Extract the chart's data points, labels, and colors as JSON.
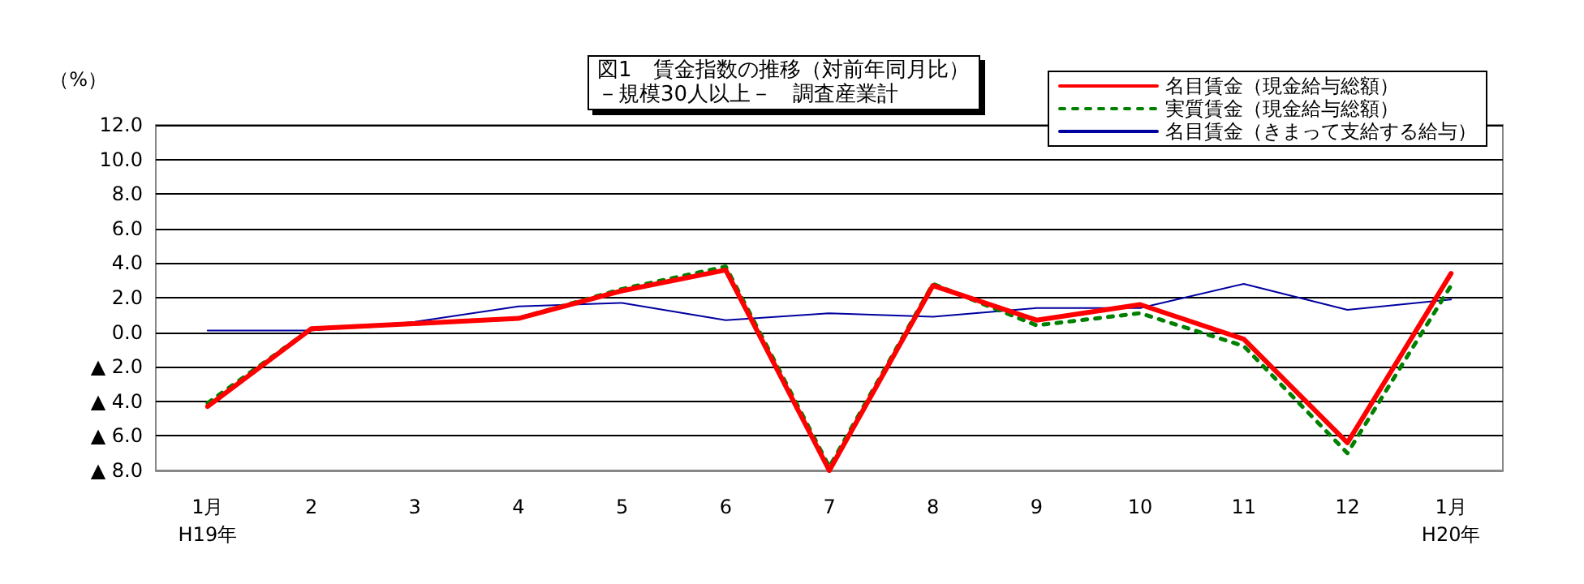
{
  "chart_data": {
    "type": "line",
    "title": "図1　賃金指数の推移（対前年同月比）",
    "subtitle": "－規模30人以上－　調査産業計",
    "ylabel": "（%）",
    "categories": [
      "1月\nH19年",
      "2",
      "3",
      "4",
      "5",
      "6",
      "7",
      "8",
      "9",
      "10",
      "11",
      "12",
      "1月\nH20年"
    ],
    "series": [
      {
        "name": "名目賃金（現金給与総額）",
        "color": "#ff0000",
        "line_style": "solid",
        "values": [
          -4.3,
          0.2,
          0.5,
          0.8,
          2.4,
          3.6,
          -8.0,
          2.7,
          0.7,
          1.6,
          -0.4,
          -6.4,
          3.4
        ]
      },
      {
        "name": "実質賃金（現金給与総額）",
        "color": "#008000",
        "line_style": "dotted",
        "values": [
          -4.1,
          0.2,
          0.5,
          0.8,
          2.5,
          3.8,
          -7.8,
          2.8,
          0.4,
          1.1,
          -0.8,
          -7.0,
          2.7
        ]
      },
      {
        "name": "名目賃金（きまって支給する給与）",
        "color": "#0000a0",
        "line_style": "solid",
        "values": [
          0.1,
          0.1,
          0.6,
          1.5,
          1.7,
          0.7,
          1.1,
          0.9,
          1.4,
          1.4,
          2.8,
          1.3,
          1.9
        ]
      }
    ],
    "ylim": [
      -8,
      12
    ],
    "yticks": [
      {
        "value": -8,
        "label": "▲ 8.0"
      },
      {
        "value": -6,
        "label": "▲ 6.0"
      },
      {
        "value": -4,
        "label": "▲ 4.0"
      },
      {
        "value": -2,
        "label": "▲ 2.0"
      },
      {
        "value": 0,
        "label": "0.0"
      },
      {
        "value": 2,
        "label": "2.0"
      },
      {
        "value": 4,
        "label": "4.0"
      },
      {
        "value": 6,
        "label": "6.0"
      },
      {
        "value": 8,
        "label": "8.0"
      },
      {
        "value": 10,
        "label": "10.0"
      },
      {
        "value": 12,
        "label": "12.0"
      }
    ],
    "grid": "y",
    "legend": "top right",
    "marker": "none"
  }
}
